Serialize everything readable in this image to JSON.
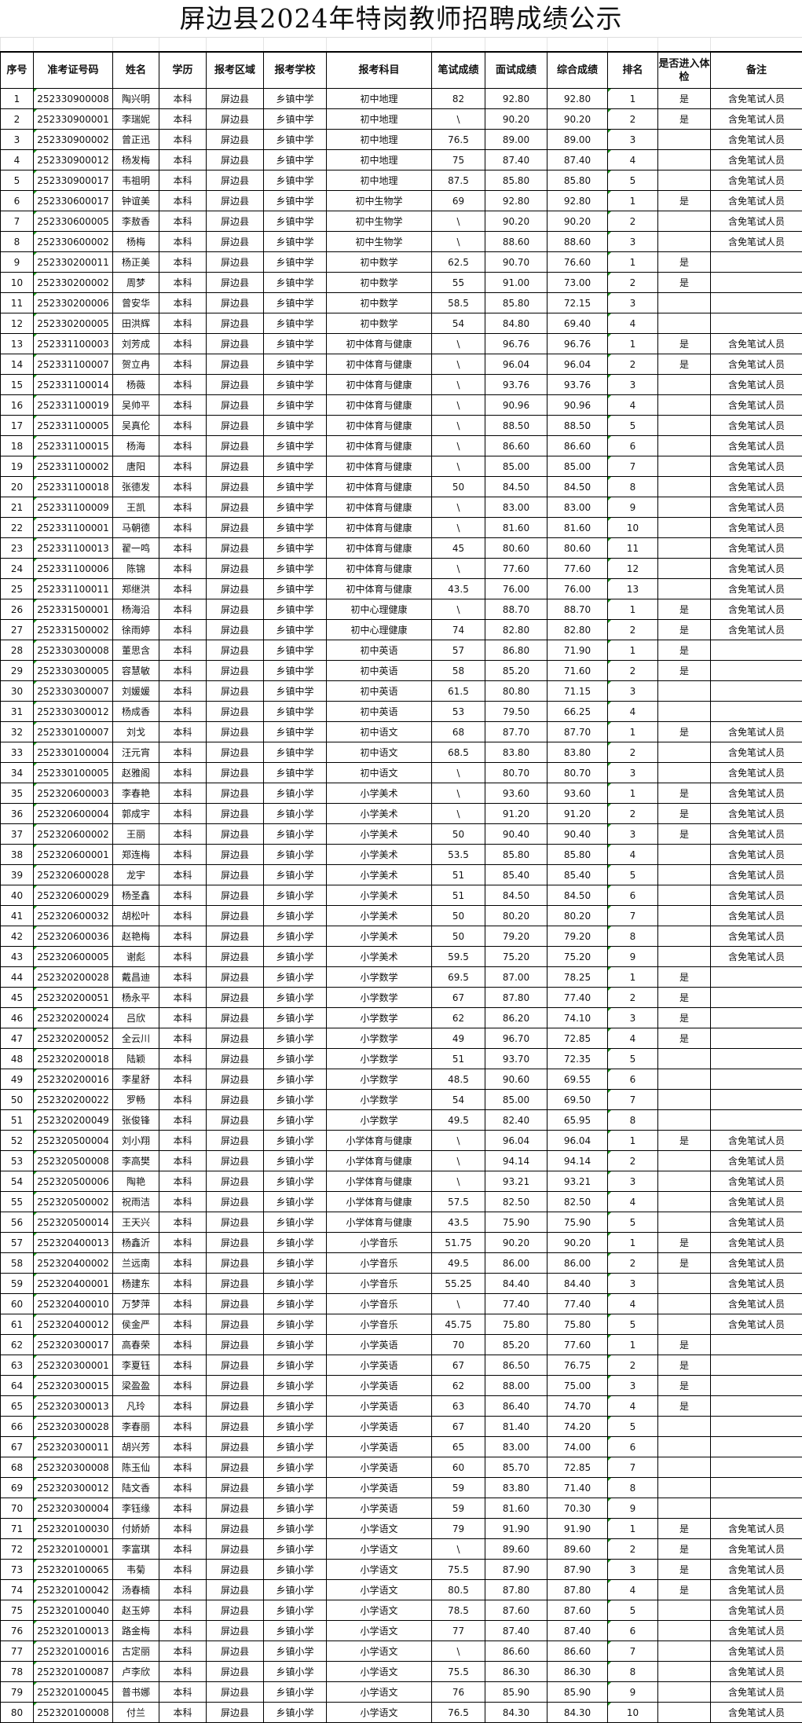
{
  "title": "屏边县2024年特岗教师招聘成绩公示",
  "table": {
    "headers": [
      "序号",
      "准考证号码",
      "姓名",
      "学历",
      "报考区域",
      "报考学校",
      "报考科目",
      "笔试成绩",
      "面试成绩",
      "综合成绩",
      "排名",
      "是否进入体检",
      "备注"
    ],
    "rows": [
      [
        "1",
        "252330900008",
        "陶兴明",
        "本科",
        "屏边县",
        "乡镇中学",
        "初中地理",
        "82",
        "92.80",
        "92.80",
        "1",
        "是",
        "含免笔试人员"
      ],
      [
        "2",
        "252330900001",
        "李瑞妮",
        "本科",
        "屏边县",
        "乡镇中学",
        "初中地理",
        "\\",
        "90.20",
        "90.20",
        "2",
        "是",
        "含免笔试人员"
      ],
      [
        "3",
        "252330900002",
        "曾正迅",
        "本科",
        "屏边县",
        "乡镇中学",
        "初中地理",
        "76.5",
        "89.00",
        "89.00",
        "3",
        "",
        "含免笔试人员"
      ],
      [
        "4",
        "252330900012",
        "杨发梅",
        "本科",
        "屏边县",
        "乡镇中学",
        "初中地理",
        "75",
        "87.40",
        "87.40",
        "4",
        "",
        "含免笔试人员"
      ],
      [
        "5",
        "252330900017",
        "韦祖明",
        "本科",
        "屏边县",
        "乡镇中学",
        "初中地理",
        "87.5",
        "85.80",
        "85.80",
        "5",
        "",
        "含免笔试人员"
      ],
      [
        "6",
        "252330600017",
        "钟谊美",
        "本科",
        "屏边县",
        "乡镇中学",
        "初中生物学",
        "69",
        "92.80",
        "92.80",
        "1",
        "是",
        "含免笔试人员"
      ],
      [
        "7",
        "252330600005",
        "李敖香",
        "本科",
        "屏边县",
        "乡镇中学",
        "初中生物学",
        "\\",
        "90.20",
        "90.20",
        "2",
        "",
        "含免笔试人员"
      ],
      [
        "8",
        "252330600002",
        "杨梅",
        "本科",
        "屏边县",
        "乡镇中学",
        "初中生物学",
        "\\",
        "88.60",
        "88.60",
        "3",
        "",
        "含免笔试人员"
      ],
      [
        "9",
        "252330200011",
        "杨正美",
        "本科",
        "屏边县",
        "乡镇中学",
        "初中数学",
        "62.5",
        "90.70",
        "76.60",
        "1",
        "是",
        ""
      ],
      [
        "10",
        "252330200002",
        "周梦",
        "本科",
        "屏边县",
        "乡镇中学",
        "初中数学",
        "55",
        "91.00",
        "73.00",
        "2",
        "是",
        ""
      ],
      [
        "11",
        "252330200006",
        "曾安华",
        "本科",
        "屏边县",
        "乡镇中学",
        "初中数学",
        "58.5",
        "85.80",
        "72.15",
        "3",
        "",
        ""
      ],
      [
        "12",
        "252330200005",
        "田洪辉",
        "本科",
        "屏边县",
        "乡镇中学",
        "初中数学",
        "54",
        "84.80",
        "69.40",
        "4",
        "",
        ""
      ],
      [
        "13",
        "252331100003",
        "刘芳成",
        "本科",
        "屏边县",
        "乡镇中学",
        "初中体育与健康",
        "\\",
        "96.76",
        "96.76",
        "1",
        "是",
        "含免笔试人员"
      ],
      [
        "14",
        "252331100007",
        "贺立冉",
        "本科",
        "屏边县",
        "乡镇中学",
        "初中体育与健康",
        "\\",
        "96.04",
        "96.04",
        "2",
        "是",
        "含免笔试人员"
      ],
      [
        "15",
        "252331100014",
        "杨薇",
        "本科",
        "屏边县",
        "乡镇中学",
        "初中体育与健康",
        "\\",
        "93.76",
        "93.76",
        "3",
        "",
        "含免笔试人员"
      ],
      [
        "16",
        "252331100019",
        "吴帅平",
        "本科",
        "屏边县",
        "乡镇中学",
        "初中体育与健康",
        "\\",
        "90.96",
        "90.96",
        "4",
        "",
        "含免笔试人员"
      ],
      [
        "17",
        "252331100005",
        "吴真伦",
        "本科",
        "屏边县",
        "乡镇中学",
        "初中体育与健康",
        "\\",
        "88.50",
        "88.50",
        "5",
        "",
        "含免笔试人员"
      ],
      [
        "18",
        "252331100015",
        "杨海",
        "本科",
        "屏边县",
        "乡镇中学",
        "初中体育与健康",
        "\\",
        "86.60",
        "86.60",
        "6",
        "",
        "含免笔试人员"
      ],
      [
        "19",
        "252331100002",
        "唐阳",
        "本科",
        "屏边县",
        "乡镇中学",
        "初中体育与健康",
        "\\",
        "85.00",
        "85.00",
        "7",
        "",
        "含免笔试人员"
      ],
      [
        "20",
        "252331100018",
        "张德发",
        "本科",
        "屏边县",
        "乡镇中学",
        "初中体育与健康",
        "50",
        "84.50",
        "84.50",
        "8",
        "",
        "含免笔试人员"
      ],
      [
        "21",
        "252331100009",
        "王凯",
        "本科",
        "屏边县",
        "乡镇中学",
        "初中体育与健康",
        "\\",
        "83.00",
        "83.00",
        "9",
        "",
        "含免笔试人员"
      ],
      [
        "22",
        "252331100001",
        "马朝德",
        "本科",
        "屏边县",
        "乡镇中学",
        "初中体育与健康",
        "\\",
        "81.60",
        "81.60",
        "10",
        "",
        "含免笔试人员"
      ],
      [
        "23",
        "252331100013",
        "翟一鸣",
        "本科",
        "屏边县",
        "乡镇中学",
        "初中体育与健康",
        "45",
        "80.60",
        "80.60",
        "11",
        "",
        "含免笔试人员"
      ],
      [
        "24",
        "252331100006",
        "陈锦",
        "本科",
        "屏边县",
        "乡镇中学",
        "初中体育与健康",
        "\\",
        "77.60",
        "77.60",
        "12",
        "",
        "含免笔试人员"
      ],
      [
        "25",
        "252331100011",
        "郑继洪",
        "本科",
        "屏边县",
        "乡镇中学",
        "初中体育与健康",
        "43.5",
        "76.00",
        "76.00",
        "13",
        "",
        "含免笔试人员"
      ],
      [
        "26",
        "252331500001",
        "杨海沿",
        "本科",
        "屏边县",
        "乡镇中学",
        "初中心理健康",
        "\\",
        "88.70",
        "88.70",
        "1",
        "是",
        "含免笔试人员"
      ],
      [
        "27",
        "252331500002",
        "徐雨婷",
        "本科",
        "屏边县",
        "乡镇中学",
        "初中心理健康",
        "74",
        "82.80",
        "82.80",
        "2",
        "是",
        "含免笔试人员"
      ],
      [
        "28",
        "252330300008",
        "董思含",
        "本科",
        "屏边县",
        "乡镇中学",
        "初中英语",
        "57",
        "86.80",
        "71.90",
        "1",
        "是",
        ""
      ],
      [
        "29",
        "252330300005",
        "容慧敏",
        "本科",
        "屏边县",
        "乡镇中学",
        "初中英语",
        "58",
        "85.20",
        "71.60",
        "2",
        "是",
        ""
      ],
      [
        "30",
        "252330300007",
        "刘媛媛",
        "本科",
        "屏边县",
        "乡镇中学",
        "初中英语",
        "61.5",
        "80.80",
        "71.15",
        "3",
        "",
        ""
      ],
      [
        "31",
        "252330300012",
        "杨成香",
        "本科",
        "屏边县",
        "乡镇中学",
        "初中英语",
        "53",
        "79.50",
        "66.25",
        "4",
        "",
        ""
      ],
      [
        "32",
        "252330100007",
        "刘戈",
        "本科",
        "屏边县",
        "乡镇中学",
        "初中语文",
        "68",
        "87.70",
        "87.70",
        "1",
        "是",
        "含免笔试人员"
      ],
      [
        "33",
        "252330100004",
        "汪元宵",
        "本科",
        "屏边县",
        "乡镇中学",
        "初中语文",
        "68.5",
        "83.80",
        "83.80",
        "2",
        "",
        "含免笔试人员"
      ],
      [
        "34",
        "252330100005",
        "赵雅阁",
        "本科",
        "屏边县",
        "乡镇中学",
        "初中语文",
        "\\",
        "80.70",
        "80.70",
        "3",
        "",
        "含免笔试人员"
      ],
      [
        "35",
        "252320600003",
        "李春艳",
        "本科",
        "屏边县",
        "乡镇小学",
        "小学美术",
        "\\",
        "93.60",
        "93.60",
        "1",
        "是",
        "含免笔试人员"
      ],
      [
        "36",
        "252320600004",
        "郭成宇",
        "本科",
        "屏边县",
        "乡镇小学",
        "小学美术",
        "\\",
        "91.20",
        "91.20",
        "2",
        "是",
        "含免笔试人员"
      ],
      [
        "37",
        "252320600002",
        "王丽",
        "本科",
        "屏边县",
        "乡镇小学",
        "小学美术",
        "50",
        "90.40",
        "90.40",
        "3",
        "是",
        "含免笔试人员"
      ],
      [
        "38",
        "252320600001",
        "郑连梅",
        "本科",
        "屏边县",
        "乡镇小学",
        "小学美术",
        "53.5",
        "85.80",
        "85.80",
        "4",
        "",
        "含免笔试人员"
      ],
      [
        "39",
        "252320600028",
        "龙宇",
        "本科",
        "屏边县",
        "乡镇小学",
        "小学美术",
        "51",
        "85.40",
        "85.40",
        "5",
        "",
        "含免笔试人员"
      ],
      [
        "40",
        "252320600029",
        "杨圣鑫",
        "本科",
        "屏边县",
        "乡镇小学",
        "小学美术",
        "51",
        "84.50",
        "84.50",
        "6",
        "",
        "含免笔试人员"
      ],
      [
        "41",
        "252320600032",
        "胡松叶",
        "本科",
        "屏边县",
        "乡镇小学",
        "小学美术",
        "50",
        "80.20",
        "80.20",
        "7",
        "",
        "含免笔试人员"
      ],
      [
        "42",
        "252320600036",
        "赵艳梅",
        "本科",
        "屏边县",
        "乡镇小学",
        "小学美术",
        "50",
        "79.20",
        "79.20",
        "8",
        "",
        "含免笔试人员"
      ],
      [
        "43",
        "252320600005",
        "谢彪",
        "本科",
        "屏边县",
        "乡镇小学",
        "小学美术",
        "59.5",
        "75.20",
        "75.20",
        "9",
        "",
        "含免笔试人员"
      ],
      [
        "44",
        "252320200028",
        "戴昌迪",
        "本科",
        "屏边县",
        "乡镇小学",
        "小学数学",
        "69.5",
        "87.00",
        "78.25",
        "1",
        "是",
        ""
      ],
      [
        "45",
        "252320200051",
        "杨永平",
        "本科",
        "屏边县",
        "乡镇小学",
        "小学数学",
        "67",
        "87.80",
        "77.40",
        "2",
        "是",
        ""
      ],
      [
        "46",
        "252320200024",
        "吕欣",
        "本科",
        "屏边县",
        "乡镇小学",
        "小学数学",
        "62",
        "86.20",
        "74.10",
        "3",
        "是",
        ""
      ],
      [
        "47",
        "252320200052",
        "全云川",
        "本科",
        "屏边县",
        "乡镇小学",
        "小学数学",
        "49",
        "96.70",
        "72.85",
        "4",
        "是",
        ""
      ],
      [
        "48",
        "252320200018",
        "陆颖",
        "本科",
        "屏边县",
        "乡镇小学",
        "小学数学",
        "51",
        "93.70",
        "72.35",
        "5",
        "",
        ""
      ],
      [
        "49",
        "252320200016",
        "李星舒",
        "本科",
        "屏边县",
        "乡镇小学",
        "小学数学",
        "48.5",
        "90.60",
        "69.55",
        "6",
        "",
        ""
      ],
      [
        "50",
        "252320200022",
        "罗畅",
        "本科",
        "屏边县",
        "乡镇小学",
        "小学数学",
        "54",
        "85.00",
        "69.50",
        "7",
        "",
        ""
      ],
      [
        "51",
        "252320200049",
        "张俊锋",
        "本科",
        "屏边县",
        "乡镇小学",
        "小学数学",
        "49.5",
        "82.40",
        "65.95",
        "8",
        "",
        ""
      ],
      [
        "52",
        "252320500004",
        "刘小翔",
        "本科",
        "屏边县",
        "乡镇小学",
        "小学体育与健康",
        "\\",
        "96.04",
        "96.04",
        "1",
        "是",
        "含免笔试人员"
      ],
      [
        "53",
        "252320500008",
        "李高樊",
        "本科",
        "屏边县",
        "乡镇小学",
        "小学体育与健康",
        "\\",
        "94.14",
        "94.14",
        "2",
        "",
        "含免笔试人员"
      ],
      [
        "54",
        "252320500006",
        "陶艳",
        "本科",
        "屏边县",
        "乡镇小学",
        "小学体育与健康",
        "\\",
        "93.21",
        "93.21",
        "3",
        "",
        "含免笔试人员"
      ],
      [
        "55",
        "252320500002",
        "祝雨洁",
        "本科",
        "屏边县",
        "乡镇小学",
        "小学体育与健康",
        "57.5",
        "82.50",
        "82.50",
        "4",
        "",
        "含免笔试人员"
      ],
      [
        "56",
        "252320500014",
        "王天兴",
        "本科",
        "屏边县",
        "乡镇小学",
        "小学体育与健康",
        "43.5",
        "75.90",
        "75.90",
        "5",
        "",
        "含免笔试人员"
      ],
      [
        "57",
        "252320400013",
        "杨鑫沂",
        "本科",
        "屏边县",
        "乡镇小学",
        "小学音乐",
        "51.75",
        "90.20",
        "90.20",
        "1",
        "是",
        "含免笔试人员"
      ],
      [
        "58",
        "252320400002",
        "兰远南",
        "本科",
        "屏边县",
        "乡镇小学",
        "小学音乐",
        "49.5",
        "86.00",
        "86.00",
        "2",
        "是",
        "含免笔试人员"
      ],
      [
        "59",
        "252320400001",
        "杨建东",
        "本科",
        "屏边县",
        "乡镇小学",
        "小学音乐",
        "55.25",
        "84.40",
        "84.40",
        "3",
        "",
        "含免笔试人员"
      ],
      [
        "60",
        "252320400010",
        "万梦萍",
        "本科",
        "屏边县",
        "乡镇小学",
        "小学音乐",
        "\\",
        "77.40",
        "77.40",
        "4",
        "",
        "含免笔试人员"
      ],
      [
        "61",
        "252320400012",
        "侯金严",
        "本科",
        "屏边县",
        "乡镇小学",
        "小学音乐",
        "45.75",
        "75.80",
        "75.80",
        "5",
        "",
        "含免笔试人员"
      ],
      [
        "62",
        "252320300017",
        "高春荣",
        "本科",
        "屏边县",
        "乡镇小学",
        "小学英语",
        "70",
        "85.20",
        "77.60",
        "1",
        "是",
        ""
      ],
      [
        "63",
        "252320300001",
        "李夏钰",
        "本科",
        "屏边县",
        "乡镇小学",
        "小学英语",
        "67",
        "86.50",
        "76.75",
        "2",
        "是",
        ""
      ],
      [
        "64",
        "252320300015",
        "梁盈盈",
        "本科",
        "屏边县",
        "乡镇小学",
        "小学英语",
        "62",
        "88.00",
        "75.00",
        "3",
        "是",
        ""
      ],
      [
        "65",
        "252320300013",
        "凡玲",
        "本科",
        "屏边县",
        "乡镇小学",
        "小学英语",
        "63",
        "86.40",
        "74.70",
        "4",
        "是",
        ""
      ],
      [
        "66",
        "252320300028",
        "李春丽",
        "本科",
        "屏边县",
        "乡镇小学",
        "小学英语",
        "67",
        "81.40",
        "74.20",
        "5",
        "",
        ""
      ],
      [
        "67",
        "252320300011",
        "胡兴芳",
        "本科",
        "屏边县",
        "乡镇小学",
        "小学英语",
        "65",
        "83.00",
        "74.00",
        "6",
        "",
        ""
      ],
      [
        "68",
        "252320300008",
        "陈玉仙",
        "本科",
        "屏边县",
        "乡镇小学",
        "小学英语",
        "60",
        "85.70",
        "72.85",
        "7",
        "",
        ""
      ],
      [
        "69",
        "252320300012",
        "陆文香",
        "本科",
        "屏边县",
        "乡镇小学",
        "小学英语",
        "59",
        "83.80",
        "71.40",
        "8",
        "",
        ""
      ],
      [
        "70",
        "252320300004",
        "李钰缘",
        "本科",
        "屏边县",
        "乡镇小学",
        "小学英语",
        "59",
        "81.60",
        "70.30",
        "9",
        "",
        ""
      ],
      [
        "71",
        "252320100030",
        "付娇娇",
        "本科",
        "屏边县",
        "乡镇小学",
        "小学语文",
        "79",
        "91.90",
        "91.90",
        "1",
        "是",
        "含免笔试人员"
      ],
      [
        "72",
        "252320100001",
        "李富琪",
        "本科",
        "屏边县",
        "乡镇小学",
        "小学语文",
        "\\",
        "89.60",
        "89.60",
        "2",
        "是",
        "含免笔试人员"
      ],
      [
        "73",
        "252320100065",
        "韦菊",
        "本科",
        "屏边县",
        "乡镇小学",
        "小学语文",
        "75.5",
        "87.90",
        "87.90",
        "3",
        "是",
        "含免笔试人员"
      ],
      [
        "74",
        "252320100042",
        "汤春楠",
        "本科",
        "屏边县",
        "乡镇小学",
        "小学语文",
        "80.5",
        "87.80",
        "87.80",
        "4",
        "是",
        "含免笔试人员"
      ],
      [
        "75",
        "252320100040",
        "赵玉婷",
        "本科",
        "屏边县",
        "乡镇小学",
        "小学语文",
        "78.5",
        "87.60",
        "87.60",
        "5",
        "",
        "含免笔试人员"
      ],
      [
        "76",
        "252320100013",
        "路金梅",
        "本科",
        "屏边县",
        "乡镇小学",
        "小学语文",
        "77",
        "87.40",
        "87.40",
        "6",
        "",
        "含免笔试人员"
      ],
      [
        "77",
        "252320100016",
        "古定丽",
        "本科",
        "屏边县",
        "乡镇小学",
        "小学语文",
        "\\",
        "86.60",
        "86.60",
        "7",
        "",
        "含免笔试人员"
      ],
      [
        "78",
        "252320100087",
        "卢李欣",
        "本科",
        "屏边县",
        "乡镇小学",
        "小学语文",
        "75.5",
        "86.30",
        "86.30",
        "8",
        "",
        "含免笔试人员"
      ],
      [
        "79",
        "252320100045",
        "普书娜",
        "本科",
        "屏边县",
        "乡镇小学",
        "小学语文",
        "76",
        "85.90",
        "85.90",
        "9",
        "",
        "含免笔试人员"
      ],
      [
        "80",
        "252320100008",
        "付兰",
        "本科",
        "屏边县",
        "乡镇小学",
        "小学语文",
        "76.5",
        "84.30",
        "84.30",
        "10",
        "",
        "含免笔试人员"
      ]
    ]
  }
}
